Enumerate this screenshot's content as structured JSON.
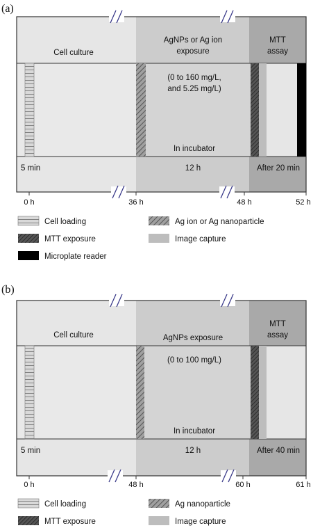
{
  "panels": [
    {
      "label": "(a)",
      "phase_labels": {
        "culture": "Cell culture",
        "exposure_line1": "AgNPs or Ag ion",
        "exposure_line2": "exposure",
        "mtt_line1": "MTT",
        "mtt_line2": "assay"
      },
      "concentration_line1": "(0 to 160 mg/L,",
      "concentration_line2": "and 5.25 mg/L)",
      "incubator": "In incubator",
      "durations": {
        "loading": "5 min",
        "exposure": "12 h",
        "assay": "After 20 min"
      },
      "ticks": [
        "0 h",
        "36 h",
        "48 h",
        "52 h"
      ],
      "legend": {
        "cell_loading": "Cell loading",
        "particle": "Ag ion or Ag nanoparticle",
        "mtt": "MTT exposure",
        "capture": "Image capture",
        "reader": "Microplate reader"
      }
    },
    {
      "label": "(b)",
      "phase_labels": {
        "culture": "Cell culture",
        "exposure_line1": "AgNPs exposure",
        "mtt_line1": "MTT",
        "mtt_line2": "assay"
      },
      "concentration_line1": "(0 to 100 mg/L)",
      "incubator": "In incubator",
      "durations": {
        "loading": "5 min",
        "exposure": "12 h",
        "assay": "After 40 min"
      },
      "ticks": [
        "0 h",
        "48 h",
        "60 h",
        "61 h"
      ],
      "legend": {
        "cell_loading": "Cell loading",
        "particle": "Ag nanoparticle",
        "mtt": "MTT exposure",
        "capture": "Image capture"
      }
    }
  ],
  "colors": {
    "culture": "#e6e6e6",
    "exposure": "#cccccc",
    "assay": "#a9a9a9",
    "capture": "#bdbdbd",
    "reader": "#000000",
    "break_marks": "#3a3a8a"
  }
}
